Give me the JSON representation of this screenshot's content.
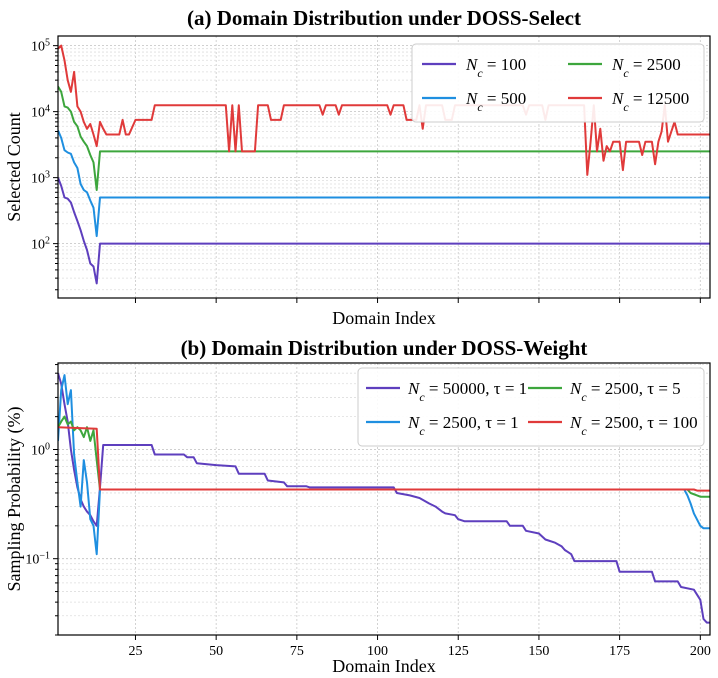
{
  "chart_data": [
    {
      "type": "line",
      "title": "(a) Domain Distribution under DOSS-Select",
      "xlabel": "Domain Index",
      "ylabel": "Selected Count",
      "yscale": "log",
      "xlim": [
        1,
        203
      ],
      "ylim": [
        15,
        140000
      ],
      "grid": true,
      "legend_position": "top-right",
      "legend_columns": 2,
      "y_ticks": [
        {
          "value": 100,
          "base": "10",
          "exp": "2"
        },
        {
          "value": 1000,
          "base": "10",
          "exp": "3"
        },
        {
          "value": 10000,
          "base": "10",
          "exp": "4"
        },
        {
          "value": 100000,
          "base": "10",
          "exp": "5"
        }
      ],
      "x_ticks": [
        25,
        50,
        75,
        100,
        125,
        150,
        175,
        200
      ],
      "show_x_tick_labels": false,
      "series": [
        {
          "name": "Nc=100",
          "legend": {
            "sym": "N",
            "sub": "c",
            "rest": " = 100"
          },
          "color": "#5e3fbe",
          "points": [
            [
              1,
              1000
            ],
            [
              2,
              750
            ],
            [
              3,
              500
            ],
            [
              4,
              480
            ],
            [
              5,
              420
            ],
            [
              6,
              300
            ],
            [
              7,
              220
            ],
            [
              8,
              160
            ],
            [
              9,
              110
            ],
            [
              10,
              80
            ],
            [
              11,
              50
            ],
            [
              12,
              45
            ],
            [
              13,
              25
            ],
            [
              14,
              100
            ],
            [
              203,
              100
            ]
          ]
        },
        {
          "name": "Nc=500",
          "legend": {
            "sym": "N",
            "sub": "c",
            "rest": " = 500"
          },
          "color": "#1f8fe0",
          "points": [
            [
              1,
              5200
            ],
            [
              2,
              4000
            ],
            [
              3,
              2600
            ],
            [
              4,
              2400
            ],
            [
              5,
              2300
            ],
            [
              6,
              1700
            ],
            [
              7,
              1400
            ],
            [
              8,
              800
            ],
            [
              9,
              650
            ],
            [
              10,
              600
            ],
            [
              11,
              450
            ],
            [
              12,
              350
            ],
            [
              13,
              130
            ],
            [
              14,
              500
            ],
            [
              203,
              500
            ]
          ]
        },
        {
          "name": "Nc=2500",
          "legend": {
            "sym": "N",
            "sub": "c",
            "rest": " = 2500"
          },
          "color": "#3da63d",
          "points": [
            [
              1,
              24000
            ],
            [
              2,
              20000
            ],
            [
              3,
              12000
            ],
            [
              4,
              11500
            ],
            [
              5,
              10000
            ],
            [
              6,
              7000
            ],
            [
              7,
              6000
            ],
            [
              8,
              4200
            ],
            [
              9,
              3500
            ],
            [
              10,
              3000
            ],
            [
              11,
              2200
            ],
            [
              12,
              1700
            ],
            [
              13,
              650
            ],
            [
              14,
              2500
            ],
            [
              203,
              2500
            ]
          ]
        },
        {
          "name": "Nc=12500",
          "legend": {
            "sym": "N",
            "sub": "c",
            "rest": " = 12500"
          },
          "color": "#e03a3a",
          "points": [
            [
              1,
              90000
            ],
            [
              2,
              100000
            ],
            [
              3,
              60000
            ],
            [
              4,
              30000
            ],
            [
              5,
              20000
            ],
            [
              6,
              40000
            ],
            [
              7,
              12000
            ],
            [
              8,
              10000
            ],
            [
              9,
              7000
            ],
            [
              10,
              5500
            ],
            [
              11,
              6500
            ],
            [
              12,
              4500
            ],
            [
              13,
              3000
            ],
            [
              14,
              7000
            ],
            [
              15,
              5500
            ],
            [
              16,
              4500
            ],
            [
              20,
              4500
            ],
            [
              21,
              7500
            ],
            [
              22,
              4500
            ],
            [
              23,
              4500
            ],
            [
              25,
              7500
            ],
            [
              30,
              7500
            ],
            [
              31,
              12500
            ],
            [
              53,
              12500
            ],
            [
              54,
              2500
            ],
            [
              55,
              12500
            ],
            [
              56,
              2500
            ],
            [
              57,
              12500
            ],
            [
              58,
              2500
            ],
            [
              62,
              2500
            ],
            [
              63,
              12500
            ],
            [
              66,
              12500
            ],
            [
              67,
              7500
            ],
            [
              70,
              7500
            ],
            [
              71,
              12500
            ],
            [
              82,
              12500
            ],
            [
              83,
              9000
            ],
            [
              84,
              12500
            ],
            [
              87,
              12500
            ],
            [
              88,
              9000
            ],
            [
              89,
              12500
            ],
            [
              103,
              12500
            ],
            [
              104,
              9000
            ],
            [
              105,
              12500
            ],
            [
              108,
              12500
            ],
            [
              109,
              7500
            ],
            [
              112,
              7500
            ],
            [
              113,
              12500
            ],
            [
              114,
              5500
            ],
            [
              115,
              12500
            ],
            [
              120,
              12500
            ],
            [
              121,
              7500
            ],
            [
              123,
              7500
            ],
            [
              124,
              12500
            ],
            [
              145,
              12500
            ],
            [
              146,
              9000
            ],
            [
              147,
              12500
            ],
            [
              151,
              12500
            ],
            [
              152,
              7500
            ],
            [
              153,
              12500
            ],
            [
              164,
              12500
            ],
            [
              165,
              1100
            ],
            [
              166,
              3500
            ],
            [
              167,
              12500
            ],
            [
              168,
              2500
            ],
            [
              169,
              5500
            ],
            [
              170,
              1800
            ],
            [
              171,
              3000
            ],
            [
              172,
              2500
            ],
            [
              173,
              3500
            ],
            [
              175,
              3500
            ],
            [
              176,
              1300
            ],
            [
              177,
              3500
            ],
            [
              181,
              3500
            ],
            [
              182,
              2200
            ],
            [
              183,
              3500
            ],
            [
              185,
              3500
            ],
            [
              186,
              1600
            ],
            [
              187,
              3500
            ],
            [
              188,
              5000
            ],
            [
              189,
              12500
            ],
            [
              190,
              3500
            ],
            [
              192,
              7000
            ],
            [
              193,
              4500
            ],
            [
              203,
              4500
            ]
          ]
        }
      ]
    },
    {
      "type": "line",
      "title": "(b) Domain Distribution under DOSS-Weight",
      "xlabel": "Domain Index",
      "ylabel": "Sampling Probability (%)",
      "yscale": "log",
      "xlim": [
        1,
        203
      ],
      "ylim": [
        0.02,
        6.2
      ],
      "grid": true,
      "legend_position": "top-right",
      "legend_columns": 2,
      "y_ticks": [
        {
          "value": 0.1,
          "base": "10",
          "exp": "−1"
        },
        {
          "value": 1,
          "base": "10",
          "exp": "0"
        }
      ],
      "x_ticks": [
        25,
        50,
        75,
        100,
        125,
        150,
        175,
        200
      ],
      "x_tick_labels": [
        "25",
        "50",
        "75",
        "100",
        "125",
        "150",
        "175",
        "200"
      ],
      "show_x_tick_labels": true,
      "series": [
        {
          "name": "Nc=50000, tau=1",
          "legend": {
            "sym": "N",
            "sub": "c",
            "rest": " = 50000, τ = 1"
          },
          "color": "#5e3fbe",
          "points": [
            [
              1,
              5.0
            ],
            [
              2,
              4.0
            ],
            [
              3,
              2.6
            ],
            [
              4,
              1.8
            ],
            [
              5,
              1.0
            ],
            [
              6,
              0.65
            ],
            [
              7,
              0.45
            ],
            [
              8,
              0.35
            ],
            [
              9,
              0.3
            ],
            [
              10,
              0.27
            ],
            [
              11,
              0.25
            ],
            [
              12,
              0.22
            ],
            [
              13,
              0.2
            ],
            [
              14,
              0.45
            ],
            [
              15,
              1.1
            ],
            [
              30,
              1.1
            ],
            [
              31,
              0.9
            ],
            [
              40,
              0.9
            ],
            [
              41,
              0.85
            ],
            [
              43,
              0.85
            ],
            [
              44,
              0.75
            ],
            [
              50,
              0.72
            ],
            [
              56,
              0.7
            ],
            [
              57,
              0.6
            ],
            [
              65,
              0.6
            ],
            [
              66,
              0.52
            ],
            [
              71,
              0.5
            ],
            [
              72,
              0.46
            ],
            [
              78,
              0.46
            ],
            [
              79,
              0.45
            ],
            [
              105,
              0.45
            ],
            [
              106,
              0.4
            ],
            [
              110,
              0.38
            ],
            [
              113,
              0.36
            ],
            [
              116,
              0.32
            ],
            [
              118,
              0.3
            ],
            [
              120,
              0.27
            ],
            [
              121,
              0.26
            ],
            [
              124,
              0.25
            ],
            [
              125,
              0.23
            ],
            [
              127,
              0.22
            ],
            [
              140,
              0.22
            ],
            [
              141,
              0.2
            ],
            [
              145,
              0.2
            ],
            [
              146,
              0.18
            ],
            [
              150,
              0.17
            ],
            [
              152,
              0.15
            ],
            [
              155,
              0.14
            ],
            [
              157,
              0.13
            ],
            [
              158,
              0.12
            ],
            [
              159,
              0.115
            ],
            [
              160,
              0.11
            ],
            [
              161,
              0.095
            ],
            [
              174,
              0.095
            ],
            [
              175,
              0.076
            ],
            [
              185,
              0.076
            ],
            [
              186,
              0.062
            ],
            [
              193,
              0.062
            ],
            [
              194,
              0.055
            ],
            [
              198,
              0.052
            ],
            [
              200,
              0.042
            ],
            [
              201,
              0.028
            ],
            [
              202,
              0.026
            ],
            [
              203,
              0.026
            ]
          ]
        },
        {
          "name": "Nc=2500, tau=1",
          "legend": {
            "sym": "N",
            "sub": "c",
            "rest": " = 2500, τ = 1"
          },
          "color": "#1f8fe0",
          "points": [
            [
              1,
              1.2
            ],
            [
              2,
              3.5
            ],
            [
              3,
              4.8
            ],
            [
              4,
              2.6
            ],
            [
              5,
              3.5
            ],
            [
              6,
              0.9
            ],
            [
              7,
              0.5
            ],
            [
              8,
              0.3
            ],
            [
              9,
              0.8
            ],
            [
              10,
              0.5
            ],
            [
              11,
              0.23
            ],
            [
              12,
              0.2
            ],
            [
              13,
              0.11
            ],
            [
              14,
              0.43
            ],
            [
              195,
              0.43
            ],
            [
              196,
              0.38
            ],
            [
              197,
              0.32
            ],
            [
              198,
              0.26
            ],
            [
              200,
              0.2
            ],
            [
              201,
              0.19
            ],
            [
              203,
              0.19
            ]
          ]
        },
        {
          "name": "Nc=2500, tau=5",
          "legend": {
            "sym": "N",
            "sub": "c",
            "rest": " = 2500, τ = 5"
          },
          "color": "#3da63d",
          "points": [
            [
              1,
              1.6
            ],
            [
              2,
              1.8
            ],
            [
              3,
              2.0
            ],
            [
              4,
              1.7
            ],
            [
              5,
              1.8
            ],
            [
              6,
              1.5
            ],
            [
              7,
              1.6
            ],
            [
              8,
              1.5
            ],
            [
              9,
              1.3
            ],
            [
              10,
              1.6
            ],
            [
              11,
              1.2
            ],
            [
              12,
              1.5
            ],
            [
              13,
              0.8
            ],
            [
              14,
              0.43
            ],
            [
              196,
              0.43
            ],
            [
              197,
              0.4
            ],
            [
              199,
              0.38
            ],
            [
              200,
              0.37
            ],
            [
              203,
              0.37
            ]
          ]
        },
        {
          "name": "Nc=2500, tau=100",
          "legend": {
            "sym": "N",
            "sub": "c",
            "rest": " = 2500, τ = 100"
          },
          "color": "#e03a3a",
          "points": [
            [
              1,
              1.6
            ],
            [
              13,
              1.55
            ],
            [
              14,
              0.43
            ],
            [
              198,
              0.43
            ],
            [
              199,
              0.42
            ],
            [
              203,
              0.42
            ]
          ]
        }
      ]
    }
  ]
}
